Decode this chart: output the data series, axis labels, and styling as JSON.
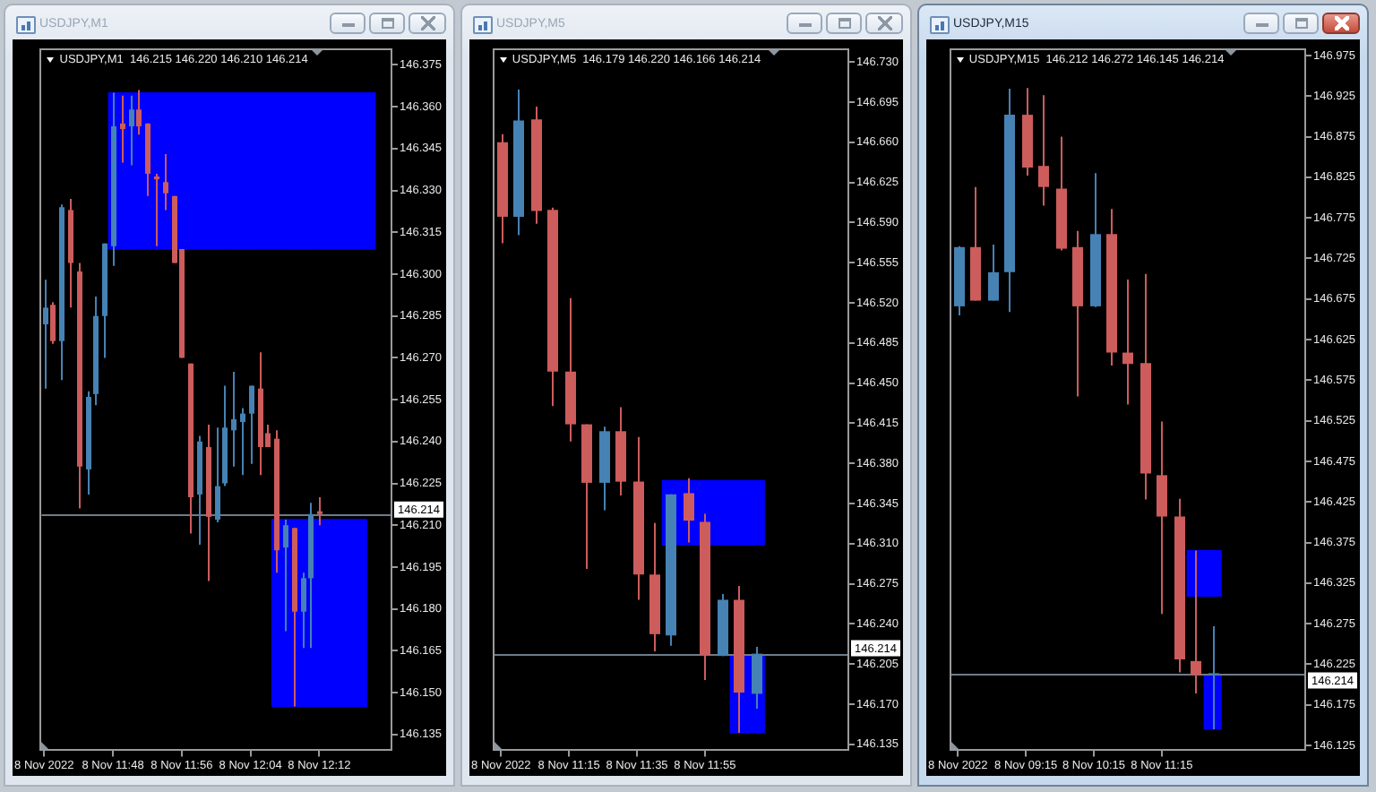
{
  "chart_data": [
    {
      "type": "candlestick",
      "title": "USDJPY,M1",
      "subtitle": "USDJPY,M1  146.215 146.220 146.210 146.214",
      "categories": [
        "8 Nov 2022",
        null,
        null,
        null,
        null,
        null,
        null,
        null,
        "8 Nov 11:48",
        null,
        null,
        null,
        null,
        null,
        null,
        null,
        "8 Nov 11:56",
        null,
        null,
        null,
        null,
        null,
        null,
        null,
        "8 Nov 12:04",
        null,
        null,
        null,
        null,
        null,
        null,
        null,
        "8 Nov 12:12",
        null,
        null,
        null,
        null,
        null,
        null,
        null,
        null
      ],
      "ohlc": [
        [
          146.282,
          146.298,
          146.259,
          146.288
        ],
        [
          146.289,
          146.29,
          146.275,
          146.276
        ],
        [
          146.276,
          146.325,
          146.262,
          146.324
        ],
        [
          146.323,
          146.327,
          146.288,
          146.304
        ],
        [
          146.301,
          146.304,
          146.216,
          146.231
        ],
        [
          146.23,
          146.258,
          146.221,
          146.256
        ],
        [
          146.257,
          146.292,
          146.253,
          146.285
        ],
        [
          146.285,
          146.311,
          146.27,
          146.311
        ],
        [
          146.31,
          146.365,
          146.303,
          146.353
        ],
        [
          146.354,
          146.364,
          146.34,
          146.352
        ],
        [
          146.353,
          146.364,
          146.339,
          146.359
        ],
        [
          146.359,
          146.366,
          146.35,
          146.353
        ],
        [
          146.354,
          146.354,
          146.328,
          146.336
        ],
        [
          146.335,
          146.336,
          146.31,
          146.334
        ],
        [
          146.333,
          146.343,
          146.323,
          146.329
        ],
        [
          146.328,
          146.328,
          146.304,
          146.304
        ],
        [
          146.309,
          146.309,
          146.27,
          146.27
        ],
        [
          146.268,
          146.268,
          146.207,
          146.22
        ],
        [
          146.221,
          146.242,
          146.203,
          146.24
        ],
        [
          146.238,
          146.246,
          146.19,
          146.213
        ],
        [
          146.212,
          146.245,
          146.211,
          146.224
        ],
        [
          146.225,
          146.26,
          146.224,
          146.245
        ],
        [
          146.244,
          146.265,
          146.231,
          146.248
        ],
        [
          146.247,
          146.252,
          146.228,
          146.25
        ],
        [
          146.25,
          146.26,
          146.232,
          146.26
        ],
        [
          146.259,
          146.272,
          146.228,
          146.238
        ],
        [
          146.243,
          146.246,
          146.238,
          146.238
        ],
        [
          146.241,
          146.244,
          146.193,
          146.201
        ],
        [
          146.202,
          146.212,
          146.172,
          146.21
        ],
        [
          146.209,
          146.209,
          146.145,
          146.179
        ],
        [
          146.179,
          146.193,
          146.166,
          146.191
        ],
        [
          146.191,
          146.218,
          146.166,
          146.214
        ],
        [
          146.215,
          146.22,
          146.21,
          146.214
        ],
        null,
        null,
        null,
        null,
        null,
        null,
        null,
        null
      ],
      "colors": [
        "#4682b4",
        "#cd5c5c",
        "#4682b4",
        "#cd5c5c",
        "#cd5c5c",
        "#4682b4",
        "#4682b4",
        "#4682b4",
        "#4682b4",
        "#cd5c5c",
        "#4682b4",
        "#cd5c5c",
        "#cd5c5c",
        "#cd5c5c",
        "#cd5c5c",
        "#cd5c5c",
        "#cd5c5c",
        "#cd5c5c",
        "#4682b4",
        "#cd5c5c",
        "#4682b4",
        "#4682b4",
        "#4682b4",
        "#4682b4",
        "#4682b4",
        "#cd5c5c",
        "#cd5c5c",
        "#cd5c5c",
        "#4682b4",
        "#cd5c5c",
        "#4682b4",
        "#4682b4",
        "#cd5c5c",
        null,
        null,
        null,
        null,
        null,
        null,
        null,
        null
      ],
      "series": [
        {
          "type": "bar",
          "color": "#0000ff",
          "base": [
            null,
            null,
            null,
            null,
            null,
            null,
            null,
            null,
            146.309,
            146.309,
            146.309,
            146.309,
            146.309,
            146.309,
            146.309,
            146.309,
            146.309,
            146.309,
            146.309,
            146.309,
            146.309,
            146.309,
            146.309,
            146.309,
            146.309,
            146.309,
            146.309,
            146.309,
            146.309,
            146.309,
            146.309,
            146.309,
            146.309,
            146.309,
            146.309,
            146.309,
            146.309,
            146.309,
            146.309,
            null,
            null
          ],
          "values": [
            null,
            null,
            null,
            null,
            null,
            null,
            null,
            null,
            0.056,
            0.056,
            0.056,
            0.056,
            0.056,
            0.056,
            0.056,
            0.056,
            0.056,
            0.056,
            0.056,
            0.056,
            0.056,
            0.056,
            0.056,
            0.056,
            0.056,
            0.056,
            0.056,
            0.056,
            0.056,
            0.056,
            0.056,
            0.056,
            0.056,
            0.056,
            0.056,
            0.056,
            0.056,
            0.056,
            0.056,
            null,
            null
          ]
        },
        {
          "type": "bar",
          "color": "#0000ff",
          "base": [
            null,
            null,
            null,
            null,
            null,
            null,
            null,
            null,
            null,
            null,
            null,
            null,
            null,
            null,
            null,
            null,
            null,
            null,
            null,
            null,
            null,
            null,
            null,
            null,
            null,
            null,
            null,
            146.145,
            146.145,
            146.145,
            146.145,
            146.145,
            146.145,
            146.145,
            146.145,
            146.145,
            146.145,
            146.145,
            null,
            null,
            null
          ],
          "values": [
            null,
            null,
            null,
            null,
            null,
            null,
            null,
            null,
            null,
            null,
            null,
            null,
            null,
            null,
            null,
            null,
            null,
            null,
            null,
            null,
            null,
            null,
            null,
            null,
            null,
            null,
            null,
            0.067,
            0.067,
            0.067,
            0.067,
            0.067,
            0.067,
            0.067,
            0.067,
            0.067,
            0.067,
            0.067,
            null,
            null,
            null
          ]
        }
      ],
      "ylim": [
        146.129,
        146.381
      ],
      "yticks": [
        146.375,
        {
          "value": 146.36,
          "label": "146.360"
        },
        146.345,
        {
          "value": 146.33,
          "label": "146.330"
        },
        146.315,
        {
          "value": 146.3,
          "label": "146.300"
        },
        146.285,
        {
          "value": 146.27,
          "label": "146.270"
        },
        146.255,
        {
          "value": 146.24,
          "label": "146.240"
        },
        146.225,
        {
          "value": 146.21,
          "label": "146.210"
        },
        146.195,
        {
          "value": 146.18,
          "label": "146.180"
        },
        146.165,
        {
          "value": 146.15,
          "label": "146.150"
        },
        146.135
      ],
      "ref_lines": [
        {
          "axis": "y",
          "value": 146.214,
          "label": "146.214",
          "color": "#6e7b88"
        }
      ]
    },
    {
      "type": "candlestick",
      "title": "USDJPY,M5",
      "subtitle": "USDJPY,M5  146.179 146.220 146.166 146.214",
      "categories": [
        "8 Nov 2022",
        null,
        null,
        null,
        "8 Nov 11:15",
        null,
        null,
        null,
        "8 Nov 11:35",
        null,
        null,
        null,
        "8 Nov 11:55",
        null,
        null,
        null,
        null,
        null,
        null,
        null,
        null
      ],
      "ohlc": [
        [
          146.66,
          146.667,
          146.572,
          146.595
        ],
        [
          146.595,
          146.706,
          146.579,
          146.679
        ],
        [
          146.68,
          146.691,
          146.589,
          146.6
        ],
        [
          146.601,
          146.603,
          146.43,
          146.46
        ],
        [
          146.46,
          146.524,
          146.399,
          146.414
        ],
        [
          146.414,
          146.414,
          146.288,
          146.363
        ],
        [
          146.363,
          146.412,
          146.339,
          146.408
        ],
        [
          146.408,
          146.429,
          146.352,
          146.364
        ],
        [
          146.364,
          146.403,
          146.261,
          146.283
        ],
        [
          146.283,
          146.328,
          146.216,
          146.231
        ],
        [
          146.23,
          146.353,
          146.221,
          146.353
        ],
        [
          146.354,
          146.367,
          146.311,
          146.33
        ],
        [
          146.329,
          146.336,
          146.191,
          146.213
        ],
        [
          146.212,
          146.266,
          146.212,
          146.261
        ],
        [
          146.261,
          146.273,
          146.145,
          146.18
        ],
        [
          146.179,
          146.22,
          146.166,
          146.214
        ],
        null,
        null,
        null,
        null,
        null
      ],
      "colors": [
        "#cd5c5c",
        "#4682b4",
        "#cd5c5c",
        "#cd5c5c",
        "#cd5c5c",
        "#cd5c5c",
        "#4682b4",
        "#cd5c5c",
        "#cd5c5c",
        "#cd5c5c",
        "#4682b4",
        "#cd5c5c",
        "#cd5c5c",
        "#4682b4",
        "#cd5c5c",
        "#4682b4",
        null,
        null,
        null,
        null,
        null
      ],
      "series": [
        {
          "type": "bar",
          "color": "#0000ff",
          "base": [
            null,
            null,
            null,
            null,
            null,
            null,
            null,
            null,
            null,
            null,
            146.309,
            146.309,
            146.309,
            146.309,
            146.309,
            146.309,
            null,
            null,
            null,
            null,
            null
          ],
          "values": [
            null,
            null,
            null,
            null,
            null,
            null,
            null,
            null,
            null,
            null,
            0.056,
            0.056,
            0.056,
            0.056,
            0.056,
            0.056,
            null,
            null,
            null,
            null,
            null
          ]
        },
        {
          "type": "bar",
          "color": "#0000ff",
          "base": [
            null,
            null,
            null,
            null,
            null,
            null,
            null,
            null,
            null,
            null,
            null,
            null,
            null,
            null,
            146.145,
            146.145,
            null,
            null,
            null,
            null,
            null
          ],
          "values": [
            null,
            null,
            null,
            null,
            null,
            null,
            null,
            null,
            null,
            null,
            null,
            null,
            null,
            null,
            0.067,
            0.067,
            null,
            null,
            null,
            null,
            null
          ]
        }
      ],
      "ylim": [
        146.129,
        146.742
      ],
      "yticks": [
        {
          "value": 146.73,
          "label": "146.730"
        },
        146.695,
        {
          "value": 146.66,
          "label": "146.660"
        },
        146.625,
        {
          "value": 146.59,
          "label": "146.590"
        },
        146.555,
        {
          "value": 146.52,
          "label": "146.520"
        },
        146.485,
        {
          "value": 146.45,
          "label": "146.450"
        },
        146.415,
        {
          "value": 146.38,
          "label": "146.380"
        },
        146.345,
        {
          "value": 146.31,
          "label": "146.310"
        },
        146.275,
        {
          "value": 146.24,
          "label": "146.240"
        },
        146.205,
        {
          "value": 146.17,
          "label": "146.170"
        },
        146.135
      ],
      "ref_lines": [
        {
          "axis": "y",
          "value": 146.214,
          "label": "146.214",
          "color": "#6e7b88"
        }
      ]
    },
    {
      "type": "candlestick",
      "title": "USDJPY,M15",
      "subtitle": "USDJPY,M15  146.212 146.272 146.145 146.214",
      "categories": [
        "8 Nov 2022",
        null,
        null,
        null,
        "8 Nov 09:15",
        null,
        null,
        null,
        "8 Nov 10:15",
        null,
        null,
        null,
        "8 Nov 11:15",
        null,
        null,
        null,
        null,
        null,
        null,
        null,
        null
      ],
      "ohlc": [
        [
          146.666,
          146.74,
          146.655,
          146.739
        ],
        [
          146.739,
          146.813,
          146.673,
          146.673
        ],
        [
          146.673,
          146.742,
          146.673,
          146.708
        ],
        [
          146.708,
          146.934,
          146.659,
          146.902
        ],
        [
          146.902,
          146.935,
          146.827,
          146.837
        ],
        [
          146.839,
          146.926,
          146.79,
          146.813
        ],
        [
          146.811,
          146.875,
          146.735,
          146.737
        ],
        [
          146.739,
          146.759,
          146.555,
          146.666
        ],
        [
          146.666,
          146.83,
          146.665,
          146.755
        ],
        [
          146.755,
          146.786,
          146.593,
          146.609
        ],
        [
          146.609,
          146.699,
          146.545,
          146.595
        ],
        [
          146.596,
          146.706,
          146.428,
          146.46
        ],
        [
          146.458,
          146.524,
          146.287,
          146.407
        ],
        [
          146.407,
          146.429,
          146.215,
          146.231
        ],
        [
          146.229,
          146.365,
          146.189,
          146.212
        ],
        [
          146.212,
          146.272,
          146.145,
          146.214
        ],
        null,
        null,
        null,
        null,
        null
      ],
      "colors": [
        "#4682b4",
        "#cd5c5c",
        "#4682b4",
        "#4682b4",
        "#cd5c5c",
        "#cd5c5c",
        "#cd5c5c",
        "#cd5c5c",
        "#4682b4",
        "#cd5c5c",
        "#cd5c5c",
        "#cd5c5c",
        "#cd5c5c",
        "#cd5c5c",
        "#cd5c5c",
        "#4682b4",
        null,
        null,
        null,
        null,
        null
      ],
      "series": [
        {
          "type": "bar",
          "color": "#0000ff",
          "base": [
            null,
            null,
            null,
            null,
            null,
            null,
            null,
            null,
            null,
            null,
            null,
            null,
            null,
            null,
            146.309,
            146.309,
            null,
            null,
            null,
            null,
            null
          ],
          "values": [
            null,
            null,
            null,
            null,
            null,
            null,
            null,
            null,
            null,
            null,
            null,
            null,
            null,
            null,
            0.056,
            0.056,
            null,
            null,
            null,
            null,
            null
          ]
        },
        {
          "type": "bar",
          "color": "#0000ff",
          "base": [
            null,
            null,
            null,
            null,
            null,
            null,
            null,
            null,
            null,
            null,
            null,
            null,
            null,
            null,
            null,
            146.145,
            null,
            null,
            null,
            null,
            null
          ],
          "values": [
            null,
            null,
            null,
            null,
            null,
            null,
            null,
            null,
            null,
            null,
            null,
            null,
            null,
            null,
            null,
            0.067,
            null,
            null,
            null,
            null,
            null
          ]
        }
      ],
      "ylim": [
        146.118,
        146.984
      ],
      "yticks": [
        146.975,
        146.925,
        146.875,
        146.825,
        146.775,
        146.725,
        146.675,
        146.625,
        146.575,
        146.525,
        146.475,
        146.425,
        146.375,
        146.325,
        146.275,
        146.225,
        146.175,
        146.125
      ],
      "ref_lines": [
        {
          "axis": "y",
          "value": 146.214,
          "label": "146.214",
          "color": "#6e7b88"
        }
      ]
    }
  ]
}
